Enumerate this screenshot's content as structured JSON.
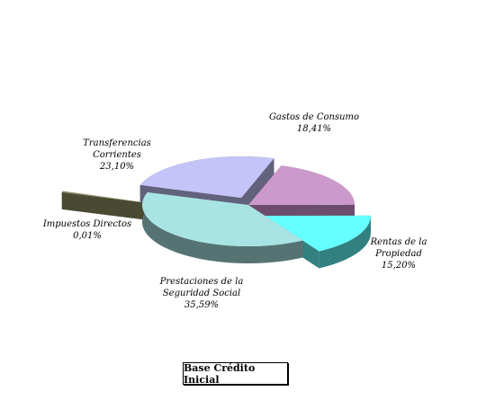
{
  "chart_data": {
    "type": "pie",
    "title": "",
    "caption": "Base Crédito Inicial",
    "slices": [
      {
        "lines": [
          "Gastos de Consumo",
          "18,41%"
        ],
        "value": 18.41,
        "color": "#cc99cc",
        "side": "#6d4d6e"
      },
      {
        "lines": [
          "Rentas de la",
          "Propiedad",
          "15,20%"
        ],
        "value": 15.2,
        "color": "#66ffff",
        "side": "#338080"
      },
      {
        "lines": [
          "Prestaciones de la",
          "Seguridad Social",
          "35,59%"
        ],
        "value": 35.59,
        "color": "#a8e4e4",
        "side": "#557373"
      },
      {
        "lines": [
          "Impuestos Directos",
          "0,01%"
        ],
        "value": 0.01,
        "color": "#8c8c64",
        "side": "#4a4a33"
      },
      {
        "lines": [
          "Transferencias",
          "Corrientes",
          "23,10%"
        ],
        "value": 23.1,
        "color": "#c4c4f8",
        "side": "#62627c"
      }
    ]
  }
}
